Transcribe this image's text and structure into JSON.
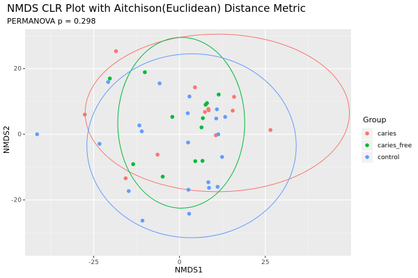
{
  "chart_data": {
    "type": "scatter",
    "title": "NMDS CLR Plot with Aitchison(Euclidean) Distance Metric",
    "subtitle": "PERMANOVA p = 0.298",
    "xlabel": "NMDS1",
    "ylabel": "NMDS2",
    "xlim": [
      -45,
      50
    ],
    "ylim": [
      -37,
      32
    ],
    "x_ticks": [
      -25,
      0,
      25
    ],
    "y_ticks": [
      20,
      0,
      -20
    ],
    "x_tick_labels": [
      "-25",
      "0",
      "25"
    ],
    "y_tick_labels": [
      "20",
      "0",
      "-20"
    ],
    "grid": true,
    "panel_background": "#ebebeb",
    "legend": {
      "title": "Group",
      "position": "right",
      "entries": [
        "caries",
        "caries_free",
        "control"
      ]
    },
    "series": [
      {
        "name": "caries",
        "color": "#f8766d",
        "points": [
          [
            -18.5,
            25.3
          ],
          [
            -27.6,
            6.0
          ],
          [
            -15.7,
            -13.4
          ],
          [
            -6.4,
            -6.2
          ],
          [
            4.5,
            14.3
          ],
          [
            8.5,
            7.3
          ],
          [
            7.4,
            6.8
          ],
          [
            8.4,
            7.7
          ],
          [
            10.6,
            -0.3
          ],
          [
            15.9,
            11.4
          ],
          [
            15.5,
            7.2
          ],
          [
            26.5,
            1.3
          ]
        ],
        "ellipse": {
          "cx": 11.0,
          "cy": 6.5,
          "rx": 38.5,
          "ry": 24.0
        }
      },
      {
        "name": "caries_free",
        "color": "#00ba38",
        "points": [
          [
            -20.3,
            17.0
          ],
          [
            -10.1,
            18.9
          ],
          [
            -2.1,
            5.3
          ],
          [
            7.6,
            9.0
          ],
          [
            11.4,
            12.1
          ],
          [
            6.4,
            2.1
          ],
          [
            6.8,
            4.9
          ],
          [
            -13.5,
            -9.1
          ],
          [
            -4.9,
            -12.9
          ],
          [
            4.6,
            -8.2
          ],
          [
            6.7,
            -8.1
          ],
          [
            8.0,
            9.5
          ]
        ],
        "ellipse": {
          "cx": 0.5,
          "cy": 3.5,
          "rx": 18.5,
          "ry": 26.0
        }
      },
      {
        "name": "control",
        "color": "#619cff",
        "points": [
          [
            -41.5,
            0.0
          ],
          [
            -20.8,
            15.9
          ],
          [
            -5.8,
            15.5
          ],
          [
            -23.3,
            -2.9
          ],
          [
            -11.7,
            2.7
          ],
          [
            -11.0,
            0.9
          ],
          [
            -14.8,
            -17.3
          ],
          [
            -10.8,
            -26.3
          ],
          [
            2.9,
            11.5
          ],
          [
            2.4,
            6.4
          ],
          [
            2.5,
            -2.5
          ],
          [
            2.6,
            -16.9
          ],
          [
            2.8,
            -24.2
          ],
          [
            8.4,
            -14.6
          ],
          [
            8.6,
            -16.3
          ],
          [
            11.1,
            -16.0
          ],
          [
            10.9,
            7.6
          ],
          [
            10.7,
            4.8
          ],
          [
            11.3,
            0.0
          ],
          [
            12.4,
            -6.9
          ],
          [
            13.3,
            5.3
          ]
        ],
        "ellipse": {
          "cx": 3.5,
          "cy": -3.5,
          "rx": 30.5,
          "ry": 28.0
        }
      }
    ]
  }
}
